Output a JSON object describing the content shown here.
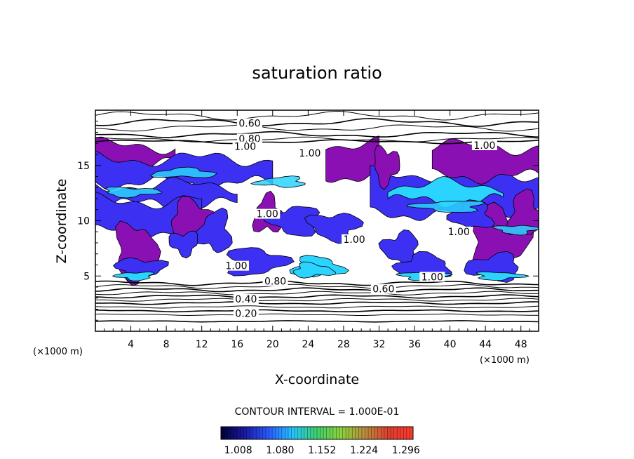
{
  "chart_data": {
    "type": "contour",
    "title": "saturation ratio",
    "xlabel": "X-coordinate",
    "ylabel": "Z-coordinate",
    "x_unit_note": "(×1000 m)",
    "y_unit_note": "(×1000 m)",
    "xlim": [
      0,
      50
    ],
    "ylim": [
      0,
      20
    ],
    "x_ticks": [
      4,
      8,
      12,
      16,
      20,
      24,
      28,
      32,
      36,
      40,
      44,
      48
    ],
    "y_ticks": [
      5,
      10,
      15
    ],
    "x_tick_labels": [
      "4",
      "8",
      "12",
      "16",
      "20",
      "24",
      "28",
      "32",
      "36",
      "40",
      "44",
      "48"
    ],
    "y_tick_labels": [
      "5",
      "10",
      "15"
    ],
    "contour_labels": [
      {
        "text": "0.60",
        "x": 17.4,
        "z": 18.7
      },
      {
        "text": "0.80",
        "x": 17.4,
        "z": 17.3
      },
      {
        "text": "1.00",
        "x": 16.9,
        "z": 16.6
      },
      {
        "text": "1.00",
        "x": 24.2,
        "z": 16.0
      },
      {
        "text": "1.00",
        "x": 43.9,
        "z": 16.7
      },
      {
        "text": "1.00",
        "x": 19.4,
        "z": 10.5
      },
      {
        "text": "1.00",
        "x": 29.2,
        "z": 8.2
      },
      {
        "text": "1.00",
        "x": 41.0,
        "z": 8.9
      },
      {
        "text": "1.00",
        "x": 15.9,
        "z": 5.8
      },
      {
        "text": "1.00",
        "x": 38.0,
        "z": 4.8
      },
      {
        "text": "0.80",
        "x": 20.3,
        "z": 4.4
      },
      {
        "text": "0.60",
        "x": 32.5,
        "z": 3.7
      },
      {
        "text": "0.40",
        "x": 17.0,
        "z": 2.8
      },
      {
        "text": "0.20",
        "x": 17.0,
        "z": 1.5
      }
    ],
    "contour_interval_text": "CONTOUR INTERVAL = 1.000E-01",
    "colorbar": {
      "range": [
        1.0,
        1.33
      ],
      "tick_labels": [
        "1.008",
        "1.080",
        "1.152",
        "1.224",
        "1.296"
      ],
      "colors": [
        "#000033",
        "#1a1aa8",
        "#2c5cff",
        "#23c6ff",
        "#3fd06a",
        "#8cd23c",
        "#b88c3a",
        "#e03c30",
        "#ff3a2a"
      ]
    },
    "fill_colors": {
      "low": "#8a10b4",
      "mid": "#3c30f2",
      "high": "#2ad4ff"
    },
    "grid": false,
    "legend": "colorbar-bottom"
  }
}
